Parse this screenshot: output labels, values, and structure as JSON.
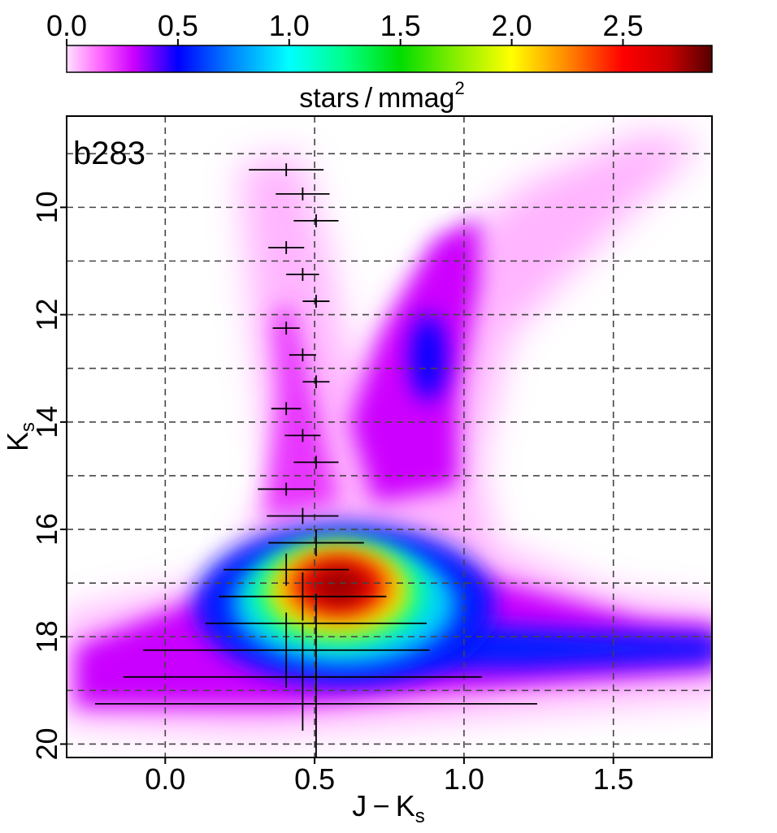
{
  "chart_data": {
    "type": "heatmap",
    "title": "",
    "panel_label": "b283",
    "xlabel": {
      "main": "J − K",
      "sub": "s"
    },
    "ylabel": {
      "main": "K",
      "sub": "s"
    },
    "xlim": [
      -0.33,
      1.83
    ],
    "ylim": [
      20.25,
      8.3
    ],
    "y_inverted": true,
    "x_ticks": [
      0.0,
      0.5,
      1.0,
      1.5
    ],
    "x_tick_labels": [
      "0.0",
      "0.5",
      "1.0",
      "1.5"
    ],
    "y_ticks": [
      10,
      12,
      14,
      16,
      18,
      20
    ],
    "y_tick_labels": [
      "10",
      "12",
      "14",
      "16",
      "18",
      "20"
    ],
    "grid": {
      "on": true,
      "style": "dashed",
      "x": [
        0.0,
        0.5,
        1.0,
        1.5
      ],
      "y": [
        9,
        10,
        11,
        12,
        13,
        14,
        15,
        16,
        17,
        18,
        19,
        20
      ]
    },
    "colorbar": {
      "placement": "top",
      "min": 0.0,
      "max": 2.9,
      "ticks": [
        0.0,
        0.5,
        1.0,
        1.5,
        2.0,
        2.5
      ],
      "tick_labels": [
        "0.0",
        "0.5",
        "1.0",
        "1.5",
        "2.0",
        "2.5"
      ],
      "label": {
        "main": "stars / mmag",
        "sup": "2"
      },
      "stops": [
        {
          "v": 0.0,
          "color": "#ffe0ff"
        },
        {
          "v": 0.15,
          "color": "#ff66ff"
        },
        {
          "v": 0.3,
          "color": "#cc00ff"
        },
        {
          "v": 0.5,
          "color": "#0000ff"
        },
        {
          "v": 0.75,
          "color": "#0088ff"
        },
        {
          "v": 1.0,
          "color": "#00ffff"
        },
        {
          "v": 1.25,
          "color": "#00ff88"
        },
        {
          "v": 1.5,
          "color": "#00dd00"
        },
        {
          "v": 1.75,
          "color": "#88ee00"
        },
        {
          "v": 2.0,
          "color": "#ffff00"
        },
        {
          "v": 2.25,
          "color": "#ff8800"
        },
        {
          "v": 2.5,
          "color": "#ff0000"
        },
        {
          "v": 2.7,
          "color": "#cc0000"
        },
        {
          "v": 2.9,
          "color": "#550000"
        }
      ]
    },
    "density_features": [
      {
        "name": "red-clump-core",
        "cx": 0.58,
        "cy": 17.05,
        "rx": 0.2,
        "ry": 0.7,
        "peak": 2.9
      },
      {
        "name": "main-blob",
        "cx": 0.58,
        "cy": 17.2,
        "rx": 0.3,
        "ry": 1.0,
        "peak": 1.9
      },
      {
        "name": "blob-halo",
        "cx": 0.6,
        "cy": 17.4,
        "rx": 0.5,
        "ry": 1.5,
        "peak": 0.9
      },
      {
        "name": "lower-band",
        "cx": 0.8,
        "cy": 18.3,
        "rx": 1.25,
        "ry": 0.75,
        "peak": 0.55
      },
      {
        "name": "giant-branch",
        "cx": 0.88,
        "cy": 12.8,
        "rx": 0.17,
        "ry": 2.3,
        "peak": 0.5
      }
    ],
    "error_bars": [
      {
        "x": 0.405,
        "y": 9.3,
        "xerr": 0.125,
        "yerr": 0.12
      },
      {
        "x": 0.46,
        "y": 9.75,
        "xerr": 0.09,
        "yerr": 0.12
      },
      {
        "x": 0.505,
        "y": 10.25,
        "xerr": 0.075,
        "yerr": 0.12
      },
      {
        "x": 0.405,
        "y": 10.75,
        "xerr": 0.06,
        "yerr": 0.12
      },
      {
        "x": 0.46,
        "y": 11.25,
        "xerr": 0.055,
        "yerr": 0.12
      },
      {
        "x": 0.505,
        "y": 11.75,
        "xerr": 0.045,
        "yerr": 0.12
      },
      {
        "x": 0.405,
        "y": 12.25,
        "xerr": 0.045,
        "yerr": 0.12
      },
      {
        "x": 0.46,
        "y": 12.75,
        "xerr": 0.045,
        "yerr": 0.12
      },
      {
        "x": 0.505,
        "y": 13.25,
        "xerr": 0.045,
        "yerr": 0.12
      },
      {
        "x": 0.405,
        "y": 13.75,
        "xerr": 0.05,
        "yerr": 0.12
      },
      {
        "x": 0.46,
        "y": 14.25,
        "xerr": 0.06,
        "yerr": 0.12
      },
      {
        "x": 0.505,
        "y": 14.75,
        "xerr": 0.075,
        "yerr": 0.12
      },
      {
        "x": 0.405,
        "y": 15.25,
        "xerr": 0.095,
        "yerr": 0.12
      },
      {
        "x": 0.46,
        "y": 15.75,
        "xerr": 0.12,
        "yerr": 0.15
      },
      {
        "x": 0.505,
        "y": 16.25,
        "xerr": 0.16,
        "yerr": 0.25
      },
      {
        "x": 0.405,
        "y": 16.75,
        "xerr": 0.21,
        "yerr": 0.3
      },
      {
        "x": 0.46,
        "y": 17.25,
        "xerr": 0.28,
        "yerr": 0.45
      },
      {
        "x": 0.505,
        "y": 17.75,
        "xerr": 0.37,
        "yerr": 0.55
      },
      {
        "x": 0.405,
        "y": 18.25,
        "xerr": 0.48,
        "yerr": 0.7
      },
      {
        "x": 0.46,
        "y": 18.75,
        "xerr": 0.6,
        "yerr": 1.0
      },
      {
        "x": 0.505,
        "y": 19.25,
        "xerr": 0.74,
        "yerr": 1.0
      }
    ]
  }
}
